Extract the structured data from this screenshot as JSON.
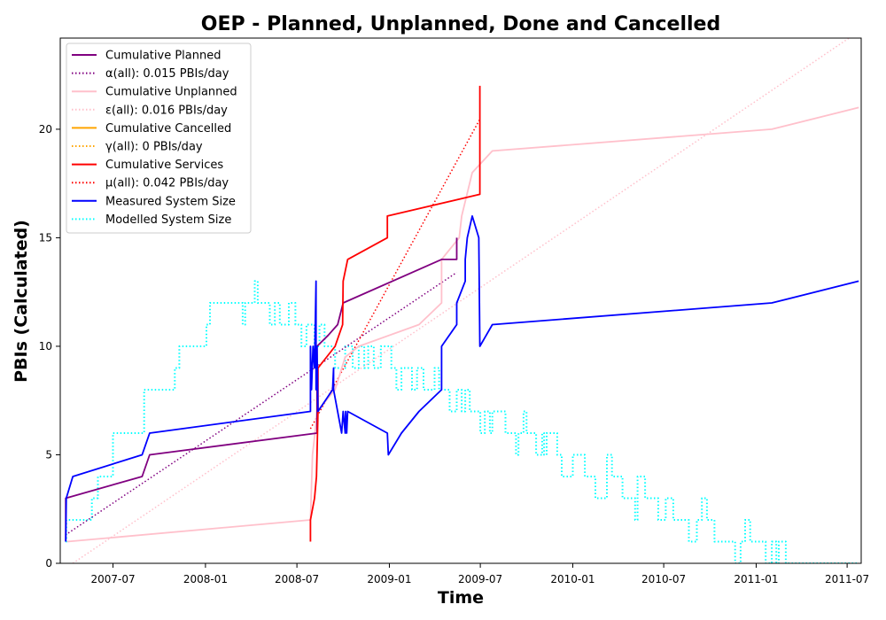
{
  "chart_data": {
    "type": "line",
    "title": "OEP - Planned, Unplanned, Done  and Cancelled",
    "xlabel": "Time",
    "ylabel": "PBIs (Calculated)",
    "xlim": [
      "2007-03-18",
      "2011-07-29"
    ],
    "ylim": [
      0,
      24.2
    ],
    "x_ticks": [
      "2007-07",
      "2008-01",
      "2008-07",
      "2009-01",
      "2009-07",
      "2010-01",
      "2010-07",
      "2011-01",
      "2011-07"
    ],
    "y_ticks": [
      0,
      5,
      10,
      15,
      20
    ],
    "grid": false,
    "legend_position": "top-left",
    "legend": [
      {
        "label": "Cumulative Planned",
        "color": "#800080",
        "style": "solid"
      },
      {
        "label": "α(all): 0.015 PBIs/day",
        "color": "#800080",
        "style": "dotted"
      },
      {
        "label": "Cumulative Unplanned",
        "color": "#ffc0cb",
        "style": "solid"
      },
      {
        "label": "ε(all): 0.016 PBIs/day",
        "color": "#ffc0cb",
        "style": "dotted"
      },
      {
        "label": "Cumulative Cancelled",
        "color": "#ffa500",
        "style": "solid"
      },
      {
        "label": "γ(all): 0 PBIs/day",
        "color": "#ffa500",
        "style": "dotted"
      },
      {
        "label": "Cumulative Services",
        "color": "#ff0000",
        "style": "solid"
      },
      {
        "label": "μ(all): 0.042 PBIs/day",
        "color": "#ff0000",
        "style": "dotted"
      },
      {
        "label": "Measured System Size",
        "color": "#0000ff",
        "style": "solid"
      },
      {
        "label": "Modelled System Size",
        "color": "#00ffff",
        "style": "dotted"
      }
    ],
    "series": [
      {
        "name": "Modelled System Size",
        "color": "#00ffff",
        "style": "dotted",
        "width": 2,
        "step": true,
        "points": [
          [
            "2007-03-29",
            1
          ],
          [
            "2007-03-30",
            2
          ],
          [
            "2007-05-20",
            3
          ],
          [
            "2007-06-01",
            4
          ],
          [
            "2007-07-01",
            6
          ],
          [
            "2007-09-01",
            8
          ],
          [
            "2007-11-01",
            9
          ],
          [
            "2007-11-10",
            10
          ],
          [
            "2008-01-03",
            11
          ],
          [
            "2008-01-10",
            12
          ],
          [
            "2008-03-15",
            11
          ],
          [
            "2008-03-20",
            12
          ],
          [
            "2008-04-08",
            13
          ],
          [
            "2008-04-14",
            12
          ],
          [
            "2008-05-08",
            11
          ],
          [
            "2008-05-18",
            12
          ],
          [
            "2008-05-28",
            11
          ],
          [
            "2008-06-15",
            12
          ],
          [
            "2008-06-28",
            11
          ],
          [
            "2008-07-10",
            10
          ],
          [
            "2008-07-20",
            11
          ],
          [
            "2008-08-05",
            10
          ],
          [
            "2008-08-15",
            11
          ],
          [
            "2008-08-25",
            10
          ],
          [
            "2008-09-15",
            9
          ],
          [
            "2008-10-05",
            10
          ],
          [
            "2008-10-20",
            9
          ],
          [
            "2008-11-01",
            10
          ],
          [
            "2008-11-12",
            9
          ],
          [
            "2008-11-20",
            10
          ],
          [
            "2008-12-01",
            9
          ],
          [
            "2008-12-15",
            10
          ],
          [
            "2009-01-05",
            9
          ],
          [
            "2009-01-15",
            8
          ],
          [
            "2009-01-25",
            9
          ],
          [
            "2009-02-15",
            8
          ],
          [
            "2009-02-25",
            9
          ],
          [
            "2009-03-10",
            8
          ],
          [
            "2009-04-01",
            9
          ],
          [
            "2009-04-10",
            8
          ],
          [
            "2009-05-01",
            7
          ],
          [
            "2009-05-15",
            8
          ],
          [
            "2009-05-25",
            7
          ],
          [
            "2009-06-01",
            8
          ],
          [
            "2009-06-10",
            7
          ],
          [
            "2009-07-01",
            6
          ],
          [
            "2009-07-10",
            7
          ],
          [
            "2009-07-20",
            6
          ],
          [
            "2009-07-25",
            7
          ],
          [
            "2009-08-20",
            6
          ],
          [
            "2009-09-10",
            5
          ],
          [
            "2009-09-15",
            6
          ],
          [
            "2009-09-25",
            7
          ],
          [
            "2009-10-01",
            6
          ],
          [
            "2009-10-20",
            5
          ],
          [
            "2009-11-01",
            6
          ],
          [
            "2009-11-05",
            5
          ],
          [
            "2009-11-10",
            6
          ],
          [
            "2009-12-01",
            5
          ],
          [
            "2009-12-10",
            4
          ],
          [
            "2010-01-01",
            5
          ],
          [
            "2010-01-25",
            4
          ],
          [
            "2010-02-15",
            3
          ],
          [
            "2010-03-10",
            5
          ],
          [
            "2010-03-20",
            4
          ],
          [
            "2010-04-10",
            3
          ],
          [
            "2010-05-05",
            2
          ],
          [
            "2010-05-10",
            4
          ],
          [
            "2010-05-25",
            3
          ],
          [
            "2010-06-20",
            2
          ],
          [
            "2010-07-05",
            3
          ],
          [
            "2010-07-20",
            2
          ],
          [
            "2010-08-20",
            1
          ],
          [
            "2010-09-05",
            2
          ],
          [
            "2010-09-15",
            3
          ],
          [
            "2010-09-25",
            2
          ],
          [
            "2010-10-10",
            1
          ],
          [
            "2010-11-20",
            0
          ],
          [
            "2010-12-01",
            1
          ],
          [
            "2010-12-10",
            2
          ],
          [
            "2010-12-20",
            1
          ],
          [
            "2011-01-20",
            0
          ],
          [
            "2011-02-01",
            1
          ],
          [
            "2011-02-10",
            0
          ],
          [
            "2011-02-15",
            1
          ],
          [
            "2011-03-01",
            0
          ],
          [
            "2011-07-24",
            0
          ]
        ]
      },
      {
        "name": "α(all): 0.015 PBIs/day",
        "color": "#800080",
        "style": "dotted",
        "width": 1.5,
        "points": [
          [
            "2007-03-28",
            1.3
          ],
          [
            "2009-05-15",
            13.4
          ]
        ]
      },
      {
        "name": "ε(all): 0.016 PBIs/day",
        "color": "#ffc0cb",
        "style": "dotted",
        "width": 1.5,
        "points": [
          [
            "2007-04-12",
            0
          ],
          [
            "2011-07-24",
            24.5
          ]
        ]
      },
      {
        "name": "μ(all): 0.042 PBIs/day",
        "color": "#ff0000",
        "style": "dotted",
        "width": 1.5,
        "points": [
          [
            "2008-07-28",
            6.2
          ],
          [
            "2009-07-01",
            20.5
          ]
        ]
      },
      {
        "name": "Cumulative Unplanned",
        "color": "#ffc0cb",
        "style": "solid",
        "width": 1.8,
        "points": [
          [
            "2007-04-01",
            1
          ],
          [
            "2008-07-28",
            2
          ],
          [
            "2008-08-01",
            5
          ],
          [
            "2008-08-06",
            6
          ],
          [
            "2008-08-10",
            7
          ],
          [
            "2008-09-15",
            8
          ],
          [
            "2008-10-05",
            9.5
          ],
          [
            "2008-11-01",
            10
          ],
          [
            "2009-03-01",
            11
          ],
          [
            "2009-04-15",
            12
          ],
          [
            "2009-04-15",
            14
          ],
          [
            "2009-05-20",
            15
          ],
          [
            "2009-05-25",
            16
          ],
          [
            "2009-06-15",
            18
          ],
          [
            "2009-07-25",
            19
          ],
          [
            "2011-02-01",
            20
          ],
          [
            "2011-07-24",
            21
          ]
        ]
      },
      {
        "name": "Cumulative Cancelled",
        "color": "#ffa500",
        "style": "solid",
        "width": 1.8,
        "points": []
      },
      {
        "name": "Cumulative Planned",
        "color": "#800080",
        "style": "solid",
        "width": 1.8,
        "points": [
          [
            "2007-03-29",
            1
          ],
          [
            "2007-03-29",
            3
          ],
          [
            "2007-08-28",
            4
          ],
          [
            "2007-09-12",
            5
          ],
          [
            "2008-08-10",
            6
          ],
          [
            "2008-08-10",
            10
          ],
          [
            "2008-09-01",
            10.5
          ],
          [
            "2008-09-20",
            11
          ],
          [
            "2008-10-01",
            12
          ],
          [
            "2009-04-15",
            14
          ],
          [
            "2009-05-15",
            14
          ],
          [
            "2009-05-15",
            15
          ]
        ]
      },
      {
        "name": "Cumulative Services",
        "color": "#ff0000",
        "style": "solid",
        "width": 1.8,
        "points": [
          [
            "2008-07-28",
            1
          ],
          [
            "2008-07-28",
            2
          ],
          [
            "2008-08-05",
            3
          ],
          [
            "2008-08-09",
            4
          ],
          [
            "2008-08-10",
            5
          ],
          [
            "2008-08-12",
            7
          ],
          [
            "2008-08-12",
            9
          ],
          [
            "2008-09-15",
            10
          ],
          [
            "2008-09-30",
            11
          ],
          [
            "2008-10-01",
            13
          ],
          [
            "2008-10-10",
            14
          ],
          [
            "2008-12-28",
            15
          ],
          [
            "2008-12-28",
            16
          ],
          [
            "2009-06-30",
            17
          ],
          [
            "2009-06-30",
            22
          ]
        ]
      },
      {
        "name": "Measured System Size",
        "color": "#0000ff",
        "style": "solid",
        "width": 1.8,
        "points": [
          [
            "2007-03-29",
            1
          ],
          [
            "2007-03-30",
            3
          ],
          [
            "2007-04-12",
            4
          ],
          [
            "2007-08-28",
            5
          ],
          [
            "2007-09-12",
            6
          ],
          [
            "2008-07-28",
            7
          ],
          [
            "2008-07-28",
            10
          ],
          [
            "2008-07-30",
            8
          ],
          [
            "2008-08-02",
            10
          ],
          [
            "2008-08-05",
            9
          ],
          [
            "2008-08-08",
            13
          ],
          [
            "2008-08-08",
            8
          ],
          [
            "2008-08-10",
            10
          ],
          [
            "2008-08-12",
            7
          ],
          [
            "2008-09-10",
            8
          ],
          [
            "2008-09-12",
            9
          ],
          [
            "2008-09-12",
            8
          ],
          [
            "2008-09-28",
            6
          ],
          [
            "2008-10-01",
            7
          ],
          [
            "2008-10-05",
            6
          ],
          [
            "2008-10-06",
            7
          ],
          [
            "2008-10-08",
            6
          ],
          [
            "2008-10-10",
            7
          ],
          [
            "2008-12-28",
            6
          ],
          [
            "2008-12-30",
            5
          ],
          [
            "2009-01-25",
            6
          ],
          [
            "2009-03-01",
            7
          ],
          [
            "2009-04-15",
            8
          ],
          [
            "2009-04-15",
            10
          ],
          [
            "2009-05-15",
            11
          ],
          [
            "2009-05-15",
            12
          ],
          [
            "2009-06-01",
            13
          ],
          [
            "2009-06-01",
            14
          ],
          [
            "2009-06-05",
            15
          ],
          [
            "2009-06-15",
            16
          ],
          [
            "2009-06-28",
            15
          ],
          [
            "2009-06-30",
            10
          ],
          [
            "2009-07-25",
            11
          ],
          [
            "2011-02-01",
            12
          ],
          [
            "2011-07-24",
            13
          ]
        ]
      }
    ]
  }
}
